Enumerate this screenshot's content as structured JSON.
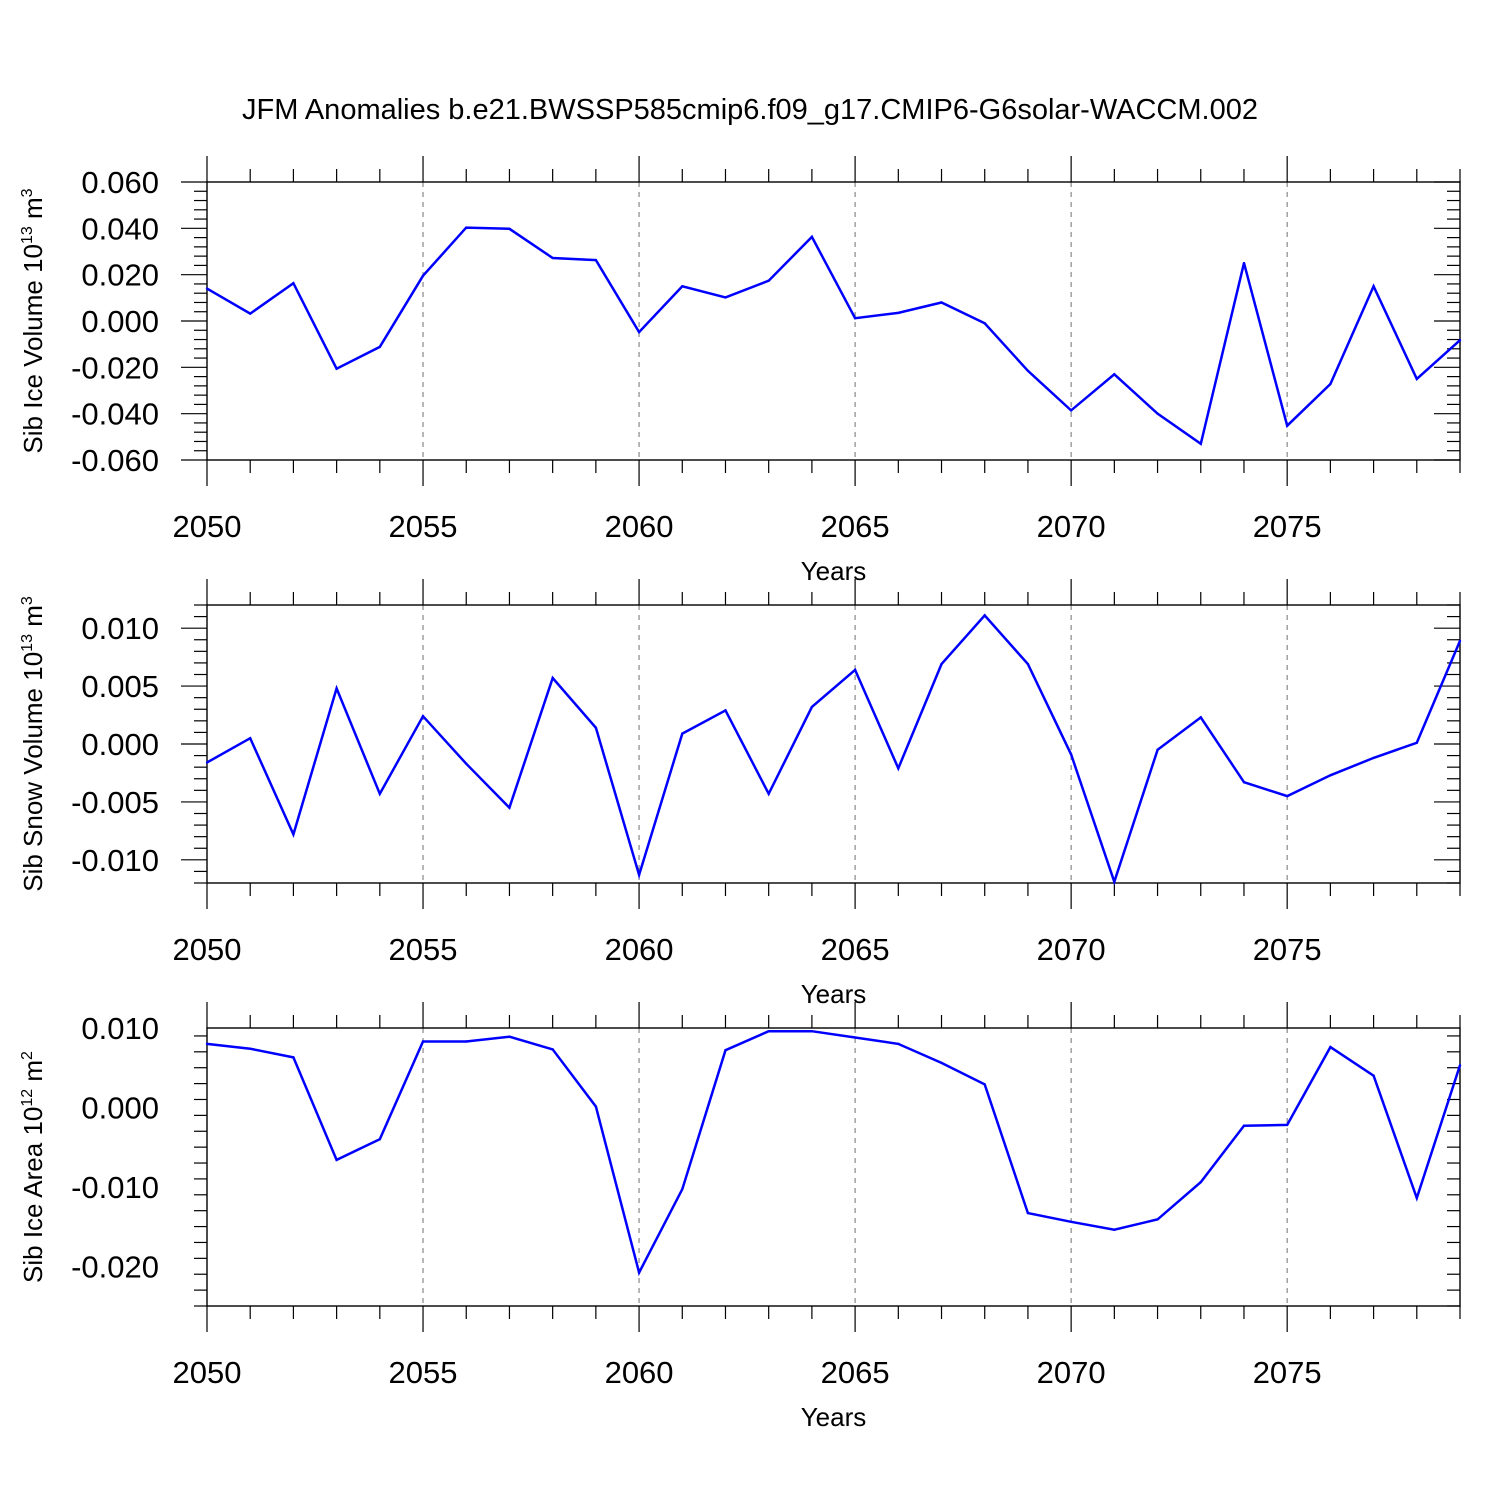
{
  "title": "JFM Anomalies b.e21.BWSSP585cmip6.f09_g17.CMIP6-G6solar-WACCM.002",
  "line_color": "#0000ff",
  "chart_data": [
    {
      "type": "line",
      "title": "JFM Anomalies b.e21.BWSSP585cmip6.f09_g17.CMIP6-G6solar-WACCM.002",
      "xlabel": "Years",
      "ylabel": "Sib Ice Volume 10",
      "ylabel_sup": "13",
      "ylabel_unit": " m",
      "ylabel_unit_sup": "3",
      "xlim": [
        2050,
        2079
      ],
      "ylim": [
        -0.06,
        0.06
      ],
      "grid": "vertical dashed at major x ticks",
      "xticks": [
        2050,
        2055,
        2060,
        2065,
        2070,
        2075
      ],
      "xtick_labels": [
        "2050",
        "2055",
        "2060",
        "2065",
        "2070",
        "2075"
      ],
      "yticks": [
        -0.06,
        -0.04,
        -0.02,
        0.0,
        0.02,
        0.04,
        0.06
      ],
      "ytick_labels": [
        "-0.060",
        "-0.040",
        "-0.020",
        "0.000",
        "0.020",
        "0.040",
        "0.060"
      ],
      "x": [
        2050,
        2051,
        2052,
        2053,
        2054,
        2055,
        2056,
        2057,
        2058,
        2059,
        2060,
        2061,
        2062,
        2063,
        2064,
        2065,
        2066,
        2067,
        2068,
        2069,
        2070,
        2071,
        2072,
        2073,
        2074,
        2075,
        2076,
        2077,
        2078,
        2079
      ],
      "values": [
        0.014,
        0.0032,
        0.0163,
        -0.0206,
        -0.0112,
        0.0195,
        0.0403,
        0.0398,
        0.0272,
        0.0263,
        -0.0048,
        0.015,
        0.0102,
        0.0174,
        0.0363,
        0.0012,
        0.0035,
        0.008,
        -0.001,
        -0.0215,
        -0.0386,
        -0.023,
        -0.04,
        -0.053,
        0.025,
        -0.0452,
        -0.0272,
        0.015,
        -0.025,
        -0.0083
      ]
    },
    {
      "type": "line",
      "xlabel": "Years",
      "ylabel": "Sib Snow Volume 10",
      "ylabel_sup": "13",
      "ylabel_unit": " m",
      "ylabel_unit_sup": "3",
      "xlim": [
        2050,
        2079
      ],
      "ylim": [
        -0.012,
        0.012
      ],
      "grid": "vertical dashed at major x ticks",
      "xticks": [
        2050,
        2055,
        2060,
        2065,
        2070,
        2075
      ],
      "xtick_labels": [
        "2050",
        "2055",
        "2060",
        "2065",
        "2070",
        "2075"
      ],
      "yticks": [
        -0.01,
        -0.005,
        0.0,
        0.005,
        0.01
      ],
      "ytick_labels": [
        "-0.010",
        "-0.005",
        "0.000",
        "0.005",
        "0.010"
      ],
      "x": [
        2050,
        2051,
        2052,
        2053,
        2054,
        2055,
        2056,
        2057,
        2058,
        2059,
        2060,
        2061,
        2062,
        2063,
        2064,
        2065,
        2066,
        2067,
        2068,
        2069,
        2070,
        2071,
        2072,
        2073,
        2074,
        2075,
        2076,
        2077,
        2078,
        2079
      ],
      "values": [
        -0.0016,
        0.0005,
        -0.0078,
        0.0048,
        -0.0043,
        0.0024,
        -0.0017,
        -0.0055,
        0.0057,
        0.0014,
        -0.0113,
        0.0009,
        0.0029,
        -0.0043,
        0.0032,
        0.0064,
        -0.0021,
        0.0069,
        0.0111,
        0.0069,
        -0.0009,
        -0.0119,
        -0.0005,
        0.0023,
        -0.0033,
        -0.0045,
        -0.0027,
        -0.0012,
        0.0001,
        0.0089
      ]
    },
    {
      "type": "line",
      "xlabel": "Years",
      "ylabel": "Sib Ice Area 10",
      "ylabel_sup": "12",
      "ylabel_unit": " m",
      "ylabel_unit_sup": "2",
      "xlim": [
        2050,
        2079
      ],
      "ylim": [
        -0.025,
        0.01
      ],
      "grid": "vertical dashed at major x ticks",
      "xticks": [
        2050,
        2055,
        2060,
        2065,
        2070,
        2075
      ],
      "xtick_labels": [
        "2050",
        "2055",
        "2060",
        "2065",
        "2070",
        "2075"
      ],
      "yticks": [
        -0.02,
        -0.01,
        0.0,
        0.01
      ],
      "ytick_labels": [
        "-0.020",
        "-0.010",
        "0.000",
        "0.010"
      ],
      "x": [
        2050,
        2051,
        2052,
        2053,
        2054,
        2055,
        2056,
        2057,
        2058,
        2059,
        2060,
        2061,
        2062,
        2063,
        2064,
        2065,
        2066,
        2067,
        2068,
        2069,
        2070,
        2071,
        2072,
        2073,
        2074,
        2075,
        2076,
        2077,
        2078,
        2079
      ],
      "values": [
        0.008,
        0.0074,
        0.0063,
        -0.0066,
        -0.004,
        0.0083,
        0.0083,
        0.0089,
        0.0073,
        0.0001,
        -0.0208,
        -0.0103,
        0.0072,
        0.0096,
        0.0096,
        0.0088,
        0.008,
        0.0056,
        0.0029,
        -0.0133,
        -0.0144,
        -0.0154,
        -0.0141,
        -0.0094,
        -0.0023,
        -0.0022,
        0.0076,
        0.004,
        -0.0114,
        0.0053
      ]
    }
  ]
}
